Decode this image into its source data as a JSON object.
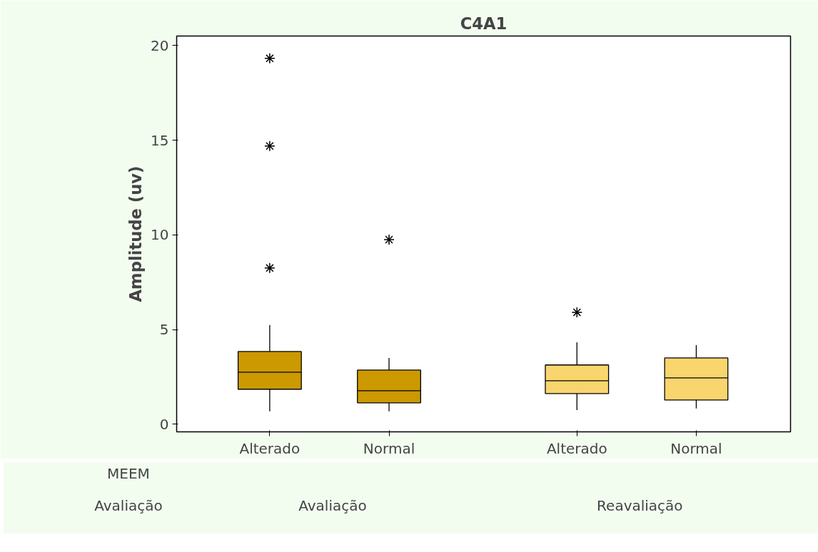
{
  "chart_data": {
    "type": "box",
    "title": "C4A1",
    "ylabel": "Amplitude (uv)",
    "categories": [
      "Alterado",
      "Normal",
      "Alterado",
      "Normal"
    ],
    "ylim": [
      -0.4,
      20.5
    ],
    "yticks": [
      0,
      5,
      10,
      15,
      20
    ],
    "grid": false,
    "annotations": [
      "MEEM",
      "Avaliação",
      "Avaliação",
      "Reavaliação"
    ],
    "colors": [
      "#cc9900",
      "#cc9900",
      "#f9d56e",
      "#f9d56e"
    ],
    "boxes": [
      {
        "low": 0.68,
        "q1": 1.85,
        "median": 2.75,
        "q3": 3.84,
        "high": 5.24,
        "outliers": [
          8.25,
          14.69,
          19.32
        ]
      },
      {
        "low": 0.68,
        "q1": 1.13,
        "median": 1.77,
        "q3": 2.86,
        "high": 3.5,
        "outliers": [
          9.75
        ]
      },
      {
        "low": 0.75,
        "q1": 1.62,
        "median": 2.3,
        "q3": 3.13,
        "high": 4.33,
        "outliers": [
          5.91
        ]
      },
      {
        "low": 0.83,
        "q1": 1.28,
        "median": 2.45,
        "q3": 3.5,
        "high": 4.18
      }
    ]
  }
}
